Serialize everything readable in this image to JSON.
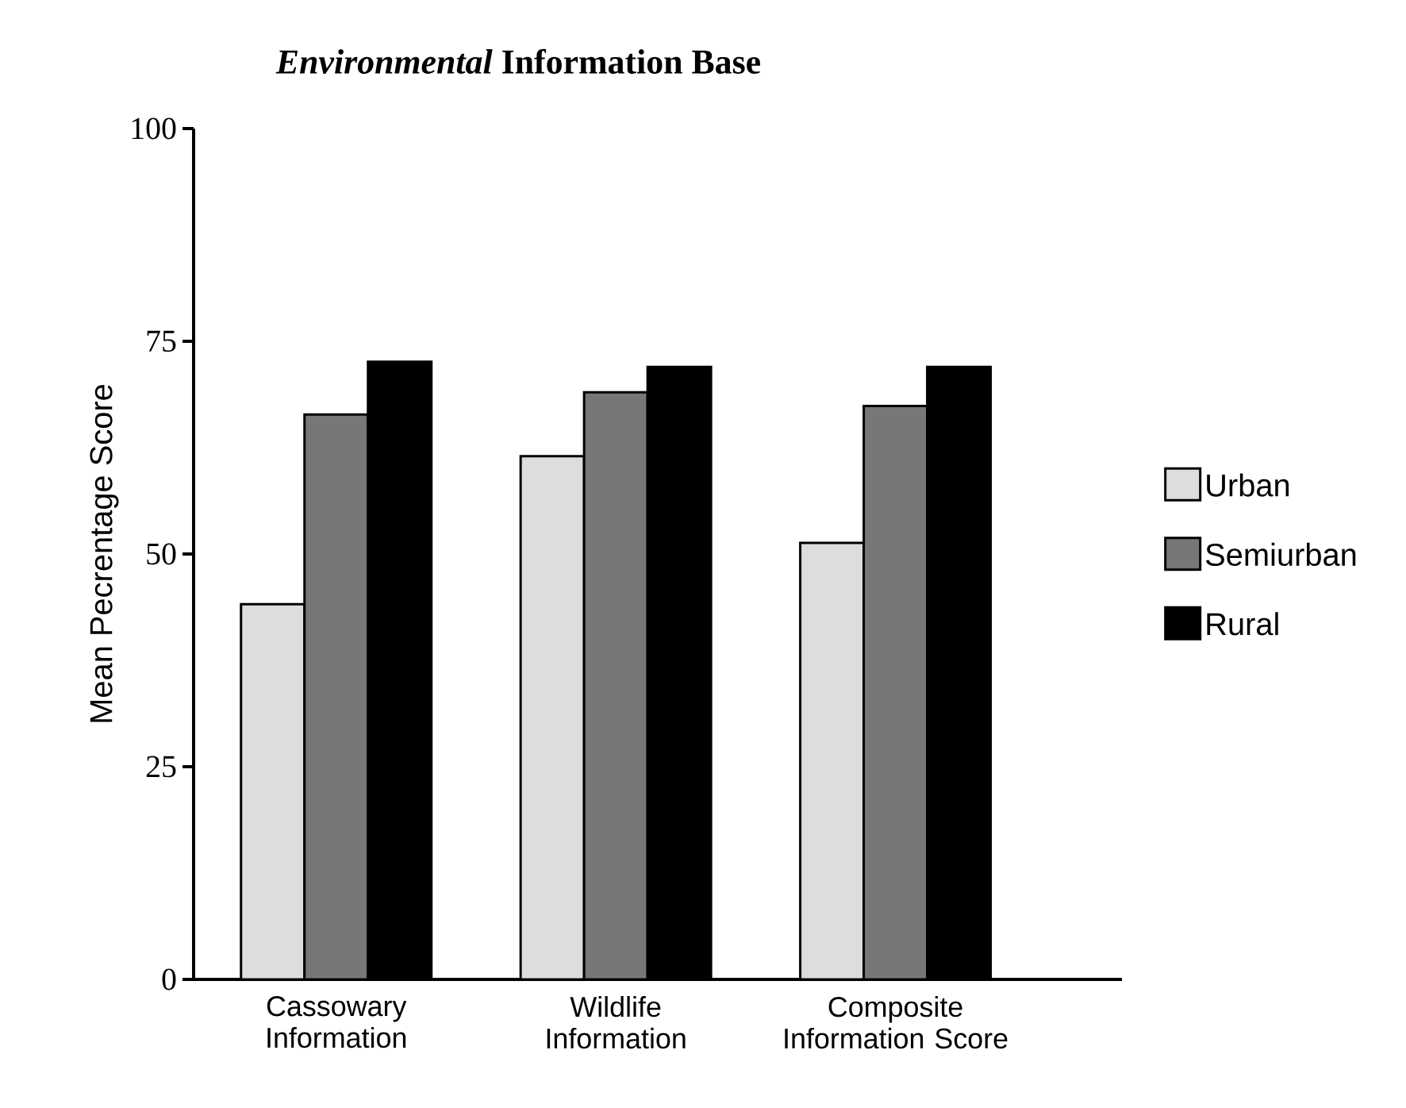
{
  "chart_data": {
    "type": "bar",
    "title": "*Environmental* Information Base",
    "ylabel": "Mean Pecrentage Score",
    "categories": [
      "Cassowary Information",
      "Wildlife Information",
      "Composite Information Score"
    ],
    "series": [
      {
        "name": "Urban",
        "color": "#dddddd",
        "values": [
          44.1,
          61.5,
          51.3
        ]
      },
      {
        "name": "Semiurban",
        "color": "#777777",
        "values": [
          66.4,
          69.0,
          67.4
        ]
      },
      {
        "name": "Rural",
        "color": "#000000",
        "values": [
          72.6,
          72.0,
          72.0
        ]
      }
    ],
    "ylim": [
      0,
      100
    ],
    "yticks": [
      0,
      25,
      50,
      75,
      100
    ],
    "grid": false,
    "legend": "right"
  }
}
